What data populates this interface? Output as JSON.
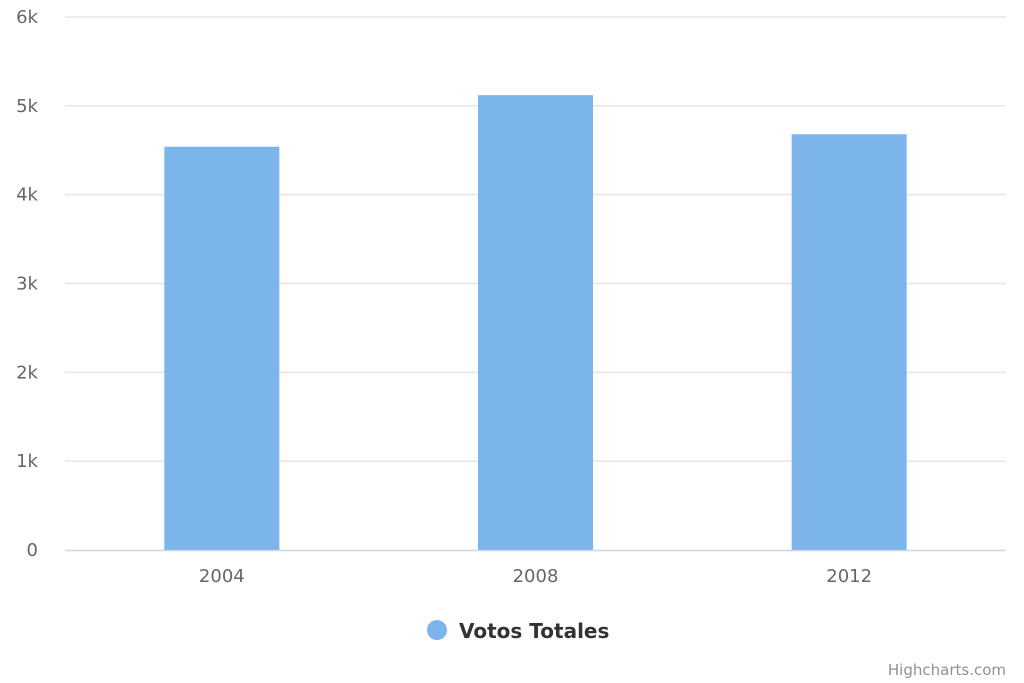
{
  "chart_data": {
    "type": "bar",
    "title": "",
    "xlabel": "",
    "ylabel": "",
    "categories": [
      "2004",
      "2008",
      "2012"
    ],
    "series": [
      {
        "name": "Votos Totales",
        "color": "#7cb5ec",
        "values": [
          4540,
          5120,
          4680
        ]
      }
    ],
    "ylim": [
      0,
      6000
    ],
    "yticks": [
      0,
      1000,
      2000,
      3000,
      4000,
      5000,
      6000
    ],
    "ytick_labels": [
      "0",
      "1k",
      "2k",
      "3k",
      "4k",
      "5k",
      "6k"
    ],
    "grid": true,
    "legend_position": "bottom-center",
    "credits": "Highcharts.com",
    "colors": {
      "grid": "#e6e6e6",
      "axis_line": "#ccd6eb"
    }
  }
}
